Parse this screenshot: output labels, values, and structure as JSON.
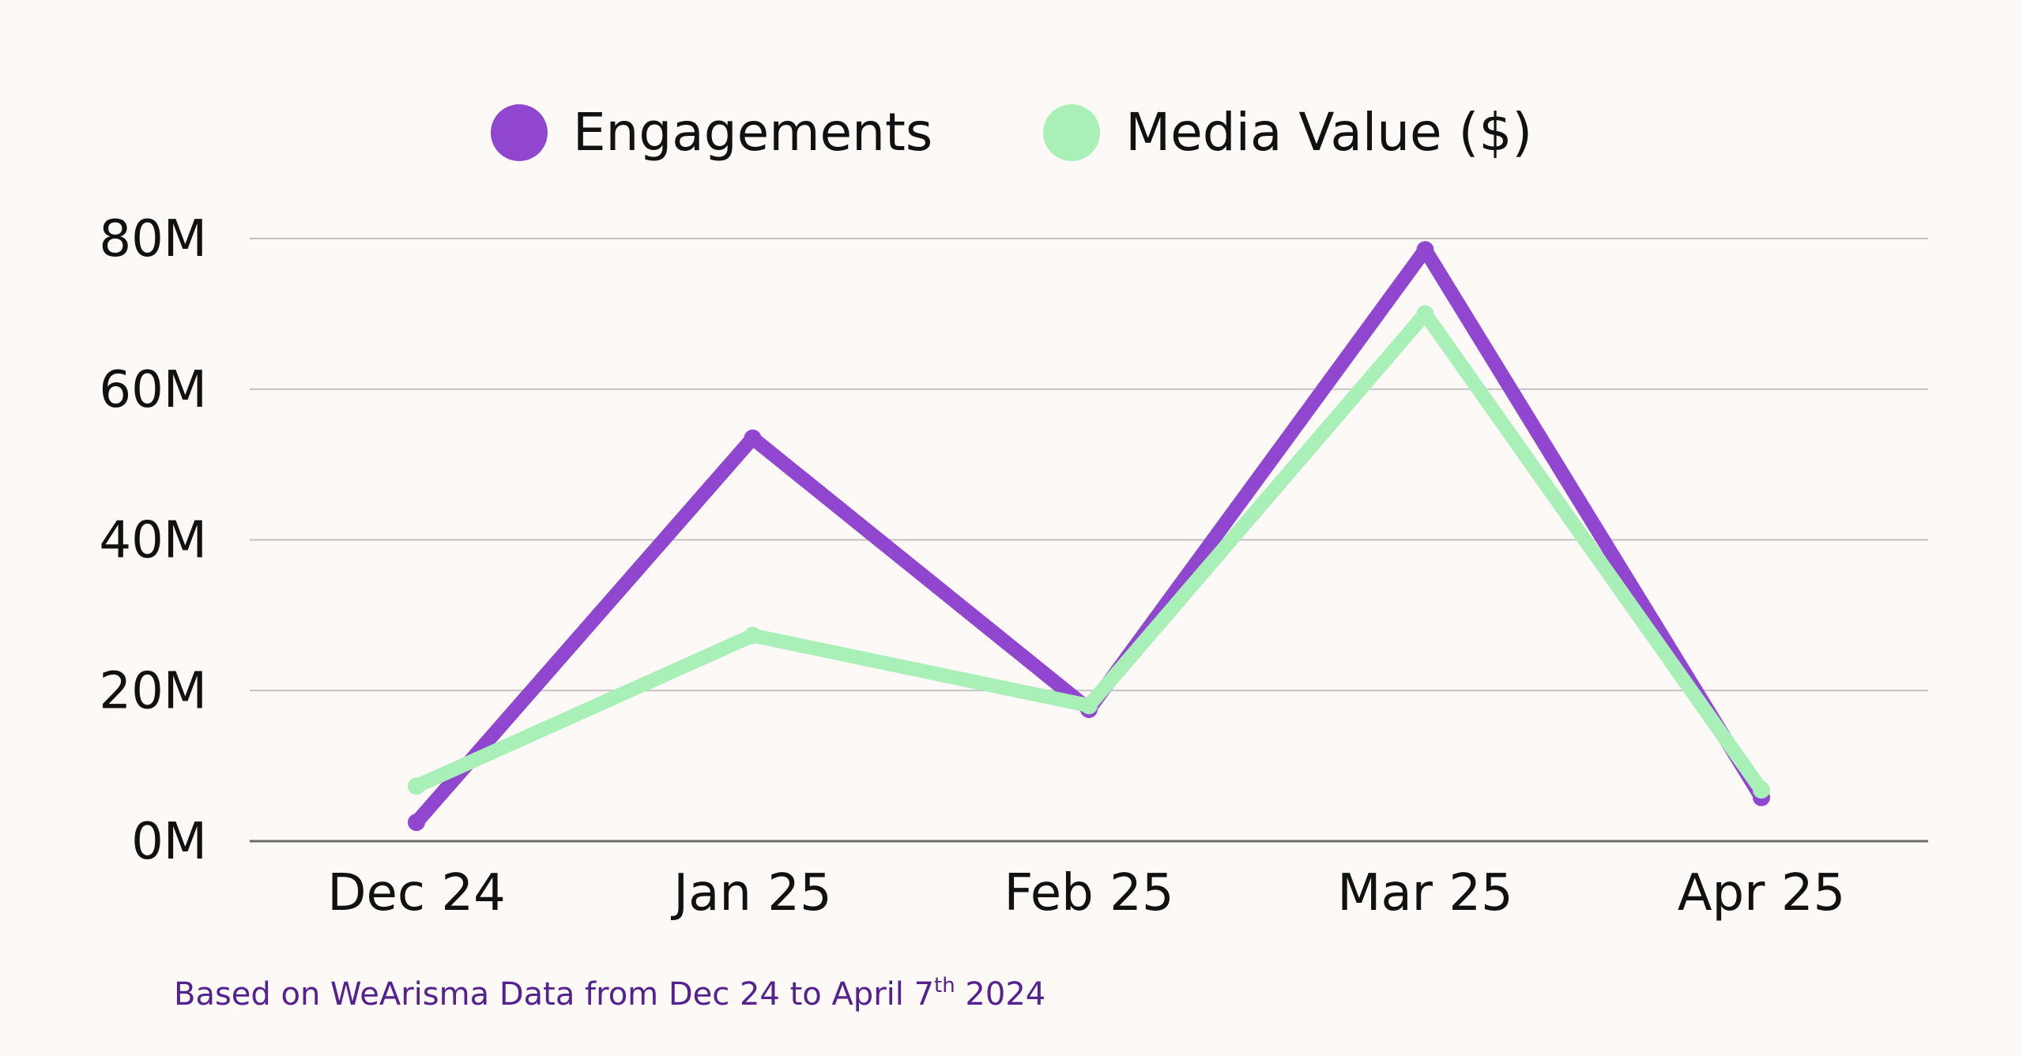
{
  "chart_data": {
    "type": "line",
    "title": "",
    "xlabel": "",
    "ylabel": "",
    "categories": [
      "Dec 24",
      "Jan 25",
      "Feb 25",
      "Mar 25",
      "Apr 25"
    ],
    "y_tick_labels": [
      "0M",
      "20M",
      "40M",
      "60M",
      "80M"
    ],
    "y_ticks": [
      0,
      20,
      40,
      60,
      80
    ],
    "ylim": [
      0,
      80
    ],
    "grid": true,
    "legend_position": "top-center",
    "series": [
      {
        "name": "Engagements",
        "color": "#9146d0",
        "values": [
          2.5,
          53.5,
          17.5,
          78.5,
          5.8
        ]
      },
      {
        "name": "Media Value ($)",
        "color": "#a9efb8",
        "values": [
          7.3,
          27.3,
          18.0,
          70.0,
          6.8
        ]
      }
    ]
  },
  "footnote": {
    "prefix": "Based on WeArisma Data from Dec 24 to April 7",
    "superscript": "th",
    "suffix": " 2024"
  }
}
